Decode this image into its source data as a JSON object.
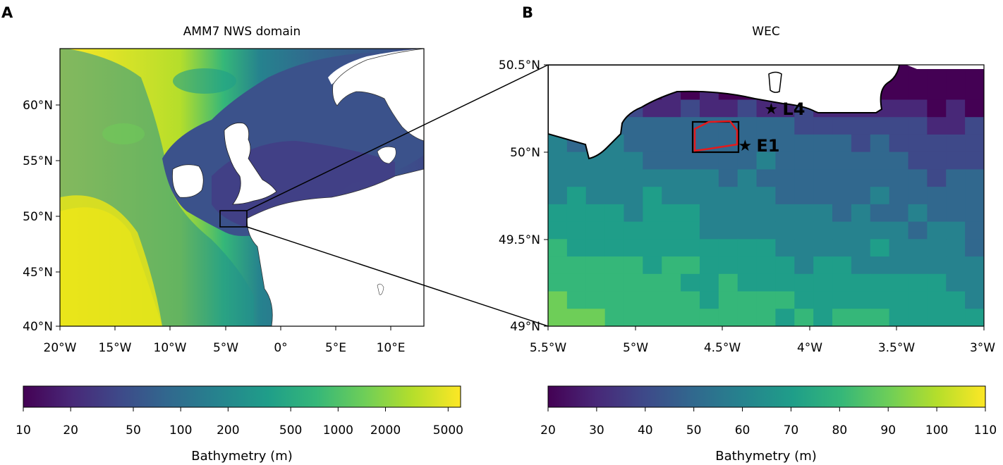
{
  "panel_a": {
    "letter": "A",
    "title": "AMM7 NWS domain",
    "lat_ticks": [
      "60°N",
      "55°N",
      "50°N",
      "45°N",
      "40°N"
    ],
    "lon_ticks": [
      "20°W",
      "15°W",
      "10°W",
      "5°W",
      "0°",
      "5°E",
      "10°E"
    ],
    "colorbar": {
      "ticks": [
        "10",
        "20",
        "50",
        "100",
        "200",
        "500",
        "1000",
        "2000",
        "5000"
      ],
      "label": "Bathymetry (m)",
      "scale": "log"
    }
  },
  "panel_b": {
    "letter": "B",
    "title": "WEC",
    "lat_ticks": [
      "50.5°N",
      "50°N",
      "49.5°N",
      "49°N"
    ],
    "lon_ticks": [
      "5.5°W",
      "5°W",
      "4.5°W",
      "4°W",
      "3.5°W",
      "3°W"
    ],
    "stations": [
      {
        "name": "L4",
        "lon": -4.22,
        "lat": 50.25
      },
      {
        "name": "E1",
        "lon": -4.37,
        "lat": 50.04
      }
    ],
    "colorbar": {
      "ticks": [
        "20",
        "30",
        "40",
        "50",
        "60",
        "70",
        "80",
        "90",
        "100",
        "110"
      ],
      "label": "Bathymetry (m)",
      "scale": "linear"
    }
  },
  "colors": {
    "viridis": [
      "#440154",
      "#482878",
      "#3e4989",
      "#31688e",
      "#26828e",
      "#1f9e89",
      "#35b779",
      "#6ece58",
      "#b5de2b",
      "#fde725"
    ],
    "land": "#ffffff",
    "region_box": "#000000",
    "site_outline": "#e41a1c"
  }
}
